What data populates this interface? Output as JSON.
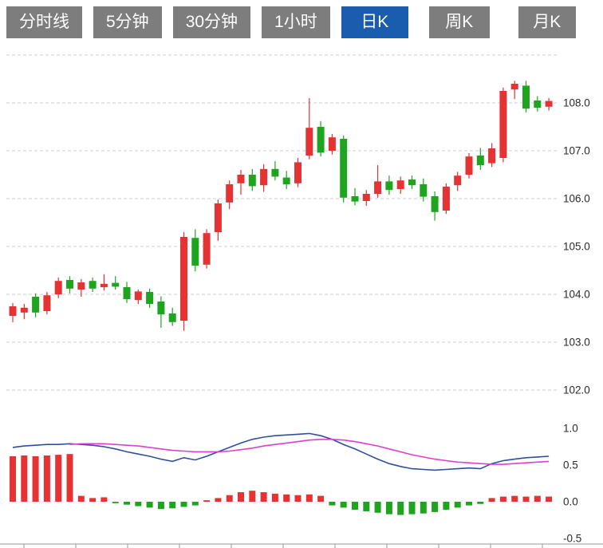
{
  "tabbar": {
    "tabs": [
      {
        "label": "分时线",
        "active": false
      },
      {
        "label": "5分钟",
        "active": false
      },
      {
        "label": "30分钟",
        "active": false
      },
      {
        "label": "1小时",
        "active": false
      },
      {
        "label": "日K",
        "active": true
      },
      {
        "label": "周K",
        "active": false
      },
      {
        "label": "月K",
        "active": false
      }
    ]
  },
  "colors": {
    "up": "#e53232",
    "down": "#1fa41f",
    "dif_line": "#2e4fa0",
    "dea_line": "#dd3fd0",
    "tab_inactive_bg": "#7d7d7d",
    "tab_active_bg": "#1a5cad",
    "tab_text": "#ffffff",
    "grid": "#cccccc",
    "axis_text": "#2b2b2b",
    "axis_line": "#999999"
  },
  "chart_data": {
    "type": "candlestick",
    "legend_position": "none",
    "grid": "dashed-horizontal",
    "grid_prices": [
      109,
      108,
      107,
      106,
      105,
      104,
      103,
      102
    ],
    "price_ticks": [
      108,
      107,
      106,
      105,
      104,
      103,
      102
    ],
    "price_tick_labels": [
      "108.0",
      "107.0",
      "106.0",
      "105.0",
      "104.0",
      "103.0",
      "102.0"
    ],
    "ylim": [
      101.5,
      109.0
    ],
    "ohlc": [
      [
        103.55,
        103.82,
        103.42,
        103.75
      ],
      [
        103.62,
        103.8,
        103.48,
        103.72
      ],
      [
        103.95,
        104.02,
        103.52,
        103.62
      ],
      [
        103.65,
        104.05,
        103.58,
        103.98
      ],
      [
        104.0,
        104.35,
        103.92,
        104.28
      ],
      [
        104.3,
        104.38,
        104.02,
        104.12
      ],
      [
        104.1,
        104.32,
        103.95,
        104.25
      ],
      [
        104.28,
        104.35,
        104.05,
        104.12
      ],
      [
        104.15,
        104.42,
        104.08,
        104.22
      ],
      [
        104.24,
        104.38,
        104.1,
        104.16
      ],
      [
        104.15,
        104.26,
        103.82,
        103.9
      ],
      [
        103.88,
        104.1,
        103.8,
        104.06
      ],
      [
        104.05,
        104.12,
        103.72,
        103.8
      ],
      [
        103.85,
        103.96,
        103.3,
        103.58
      ],
      [
        103.6,
        103.72,
        103.34,
        103.42
      ],
      [
        103.45,
        105.3,
        103.24,
        105.2
      ],
      [
        105.18,
        105.36,
        104.48,
        104.6
      ],
      [
        104.62,
        105.36,
        104.54,
        105.28
      ],
      [
        105.3,
        105.98,
        105.12,
        105.9
      ],
      [
        105.92,
        106.38,
        105.78,
        106.3
      ],
      [
        106.32,
        106.6,
        106.08,
        106.5
      ],
      [
        106.5,
        106.62,
        106.16,
        106.26
      ],
      [
        106.28,
        106.72,
        106.14,
        106.62
      ],
      [
        106.62,
        106.78,
        106.38,
        106.46
      ],
      [
        106.44,
        106.58,
        106.2,
        106.3
      ],
      [
        106.32,
        106.85,
        106.24,
        106.76
      ],
      [
        106.9,
        108.1,
        106.82,
        107.48
      ],
      [
        107.5,
        107.62,
        106.88,
        106.96
      ],
      [
        107.0,
        107.35,
        106.92,
        107.28
      ],
      [
        107.25,
        107.32,
        105.92,
        106.02
      ],
      [
        106.05,
        106.22,
        105.86,
        105.94
      ],
      [
        105.95,
        106.18,
        105.85,
        106.1
      ],
      [
        106.1,
        106.7,
        106.02,
        106.36
      ],
      [
        106.36,
        106.48,
        106.08,
        106.18
      ],
      [
        106.2,
        106.46,
        106.1,
        106.38
      ],
      [
        106.4,
        106.48,
        106.2,
        106.28
      ],
      [
        106.3,
        106.42,
        105.94,
        106.04
      ],
      [
        106.05,
        106.15,
        105.54,
        105.72
      ],
      [
        105.75,
        106.32,
        105.68,
        106.25
      ],
      [
        106.28,
        106.56,
        106.16,
        106.48
      ],
      [
        106.5,
        106.95,
        106.42,
        106.88
      ],
      [
        106.9,
        107.06,
        106.6,
        106.7
      ],
      [
        106.74,
        107.16,
        106.66,
        107.05
      ],
      [
        106.85,
        108.32,
        106.76,
        108.25
      ],
      [
        108.28,
        108.46,
        108.08,
        108.4
      ],
      [
        108.36,
        108.46,
        107.8,
        107.88
      ],
      [
        108.05,
        108.14,
        107.82,
        107.9
      ],
      [
        107.92,
        108.1,
        107.84,
        108.04
      ]
    ],
    "indicator": {
      "type": "macd",
      "ticks": [
        1.0,
        0.5,
        0.0,
        -0.5
      ],
      "tick_labels": [
        "1.0",
        "0.5",
        "0.0",
        "-0.5"
      ],
      "ylim": [
        -0.6,
        1.1
      ],
      "histogram": [
        0.62,
        0.63,
        0.62,
        0.63,
        0.64,
        0.65,
        0.08,
        0.05,
        0.06,
        -0.02,
        -0.04,
        -0.06,
        -0.08,
        -0.1,
        -0.09,
        -0.07,
        -0.05,
        0.02,
        0.05,
        0.09,
        0.13,
        0.15,
        0.13,
        0.11,
        0.1,
        0.09,
        0.1,
        0.08,
        -0.05,
        -0.08,
        -0.11,
        -0.13,
        -0.15,
        -0.17,
        -0.18,
        -0.17,
        -0.16,
        -0.14,
        -0.11,
        -0.08,
        -0.05,
        -0.03,
        0.05,
        0.07,
        0.08,
        0.07,
        0.08,
        0.07
      ],
      "dif": [
        0.74,
        0.76,
        0.77,
        0.78,
        0.78,
        0.79,
        0.78,
        0.77,
        0.75,
        0.72,
        0.68,
        0.65,
        0.62,
        0.58,
        0.55,
        0.6,
        0.57,
        0.62,
        0.68,
        0.74,
        0.8,
        0.85,
        0.88,
        0.9,
        0.91,
        0.92,
        0.93,
        0.9,
        0.85,
        0.78,
        0.72,
        0.65,
        0.58,
        0.52,
        0.48,
        0.45,
        0.44,
        0.43,
        0.44,
        0.45,
        0.46,
        0.45,
        0.52,
        0.56,
        0.58,
        0.6,
        0.61,
        0.62
      ],
      "dea": [
        null,
        null,
        null,
        null,
        null,
        0.78,
        0.79,
        0.79,
        0.79,
        0.78,
        0.77,
        0.76,
        0.74,
        0.72,
        0.7,
        0.69,
        0.68,
        0.68,
        0.68,
        0.69,
        0.71,
        0.73,
        0.76,
        0.78,
        0.8,
        0.82,
        0.84,
        0.85,
        0.85,
        0.84,
        0.82,
        0.79,
        0.76,
        0.72,
        0.68,
        0.64,
        0.61,
        0.58,
        0.56,
        0.54,
        0.53,
        0.52,
        0.51,
        0.51,
        0.52,
        0.53,
        0.54,
        0.55
      ]
    }
  }
}
